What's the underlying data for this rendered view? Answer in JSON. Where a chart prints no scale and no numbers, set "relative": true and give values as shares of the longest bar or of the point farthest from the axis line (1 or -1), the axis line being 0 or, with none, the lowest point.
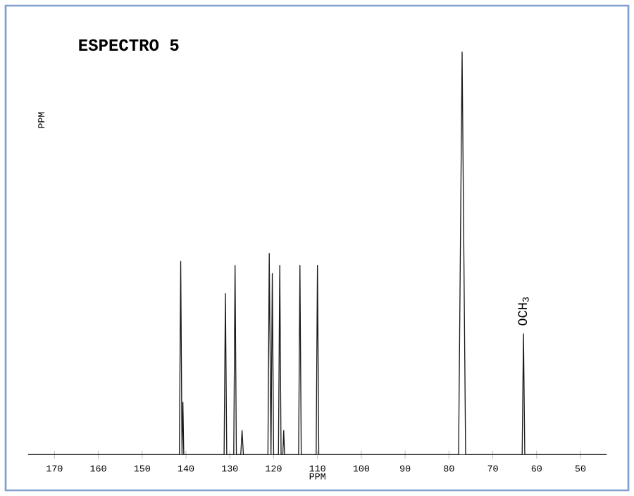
{
  "chart_data": {
    "type": "line",
    "title": "ESPECTRO 5",
    "xlabel": "PPM",
    "ylabel": "PPM",
    "relative": true,
    "color": "#1a1a1a",
    "x": [
      176,
      141.5,
      141.2,
      140.9,
      140.7,
      140.5,
      140.3,
      131.3,
      131.0,
      130.7,
      129.1,
      128.8,
      128.5,
      127.5,
      127.2,
      126.9,
      121.3,
      121.0,
      120.6,
      120.3,
      120.0,
      118.9,
      118.6,
      118.3,
      117.9,
      117.7,
      117.5,
      114.3,
      114.0,
      113.7,
      110.3,
      110.0,
      109.7,
      77.8,
      77.0,
      76.2,
      63.3,
      63.0,
      62.7,
      44
    ],
    "values": [
      0,
      0,
      0.48,
      0,
      0.13,
      0,
      0,
      0,
      0.4,
      0,
      0,
      0.47,
      0,
      0,
      0.06,
      0,
      0,
      0.5,
      0,
      0.45,
      0,
      0,
      0.47,
      0,
      0,
      0.06,
      0,
      0,
      0.47,
      0,
      0,
      0.47,
      0,
      0,
      1,
      0,
      0,
      0.3,
      0,
      0
    ],
    "xlim": [
      176,
      44
    ],
    "xticks": [
      170,
      160,
      150,
      140,
      130,
      120,
      110,
      100,
      90,
      80,
      70,
      60,
      50
    ],
    "annotations": [
      {
        "text": "OCH$_{3}$",
        "x": 63,
        "y": 0.3
      }
    ],
    "grid": false,
    "marker": "none",
    "line_style": "solid"
  }
}
